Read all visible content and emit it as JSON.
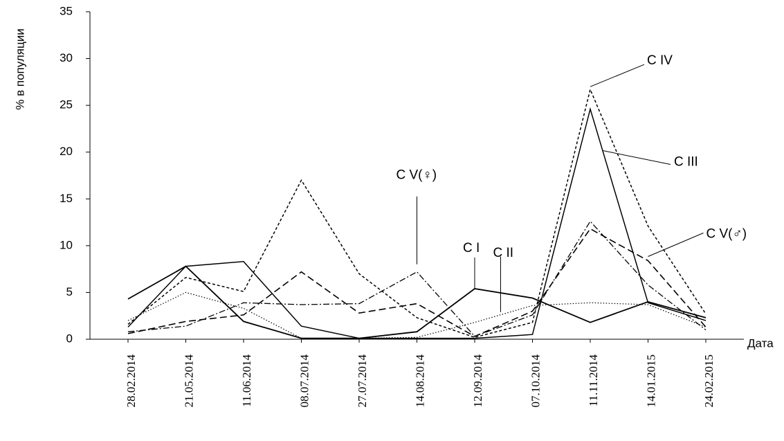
{
  "chart_data": {
    "type": "line",
    "title": "",
    "xlabel": "Дата",
    "ylabel": "% в популяции",
    "ylim": [
      0,
      35
    ],
    "yticks": [
      0,
      5,
      10,
      15,
      20,
      25,
      30,
      35
    ],
    "grid": false,
    "legend": "none",
    "categories": [
      "28.02.2014",
      "21.05.2014",
      "11.06.2014",
      "08.07.2014",
      "27.07.2014",
      "14.08.2014",
      "12.09.2014",
      "07.10.2014",
      "11.11.2014",
      "14.01.2015",
      "24.02.2015"
    ],
    "series": [
      {
        "name": "C I",
        "dash": "solid",
        "width": 1.8,
        "values": [
          4.3,
          7.8,
          1.9,
          0.1,
          0.1,
          0.8,
          5.4,
          4.4,
          1.8,
          4.0,
          2.3
        ]
      },
      {
        "name": "C II",
        "dash": "dotted",
        "width": 1.2,
        "values": [
          2.0,
          5.0,
          3.3,
          0.1,
          0.1,
          0.2,
          1.8,
          3.6,
          3.9,
          3.7,
          1.3
        ]
      },
      {
        "name": "C III",
        "dash": "solid",
        "width": 1.5,
        "values": [
          1.3,
          7.8,
          8.3,
          1.4,
          0.1,
          0.1,
          0.1,
          0.5,
          24.6,
          3.9,
          2.0
        ]
      },
      {
        "name": "C IV",
        "dash": "short",
        "width": 1.5,
        "values": [
          1.6,
          6.6,
          5.1,
          17.0,
          7.0,
          2.3,
          0.2,
          1.8,
          26.7,
          12.1,
          2.7
        ]
      },
      {
        "name": "C V(♀)",
        "dash": "dashdot",
        "width": 1.3,
        "values": [
          0.8,
          1.4,
          3.9,
          3.7,
          3.8,
          7.2,
          0.3,
          2.6,
          12.6,
          5.8,
          1.0
        ]
      },
      {
        "name": "C V(♂)",
        "dash": "long",
        "width": 1.6,
        "values": [
          0.6,
          1.9,
          2.6,
          7.2,
          2.8,
          3.8,
          0.3,
          3.0,
          11.8,
          8.4,
          1.3
        ]
      }
    ],
    "annotations": [
      {
        "text": "C IV",
        "series": "C IV",
        "at": "11.11.2014"
      },
      {
        "text": "C III",
        "series": "C III",
        "at": "11.11.2014"
      },
      {
        "text": "C V(♂)",
        "series": "C V(♂)",
        "at": "14.01.2015"
      },
      {
        "text": "C V(♀)",
        "series": "C V(♀)",
        "at": "14.08.2014"
      },
      {
        "text": "C I",
        "series": "C I",
        "at": "12.09.2014"
      },
      {
        "text": "C II",
        "series": "C II",
        "at": "07.10.2014"
      }
    ]
  }
}
